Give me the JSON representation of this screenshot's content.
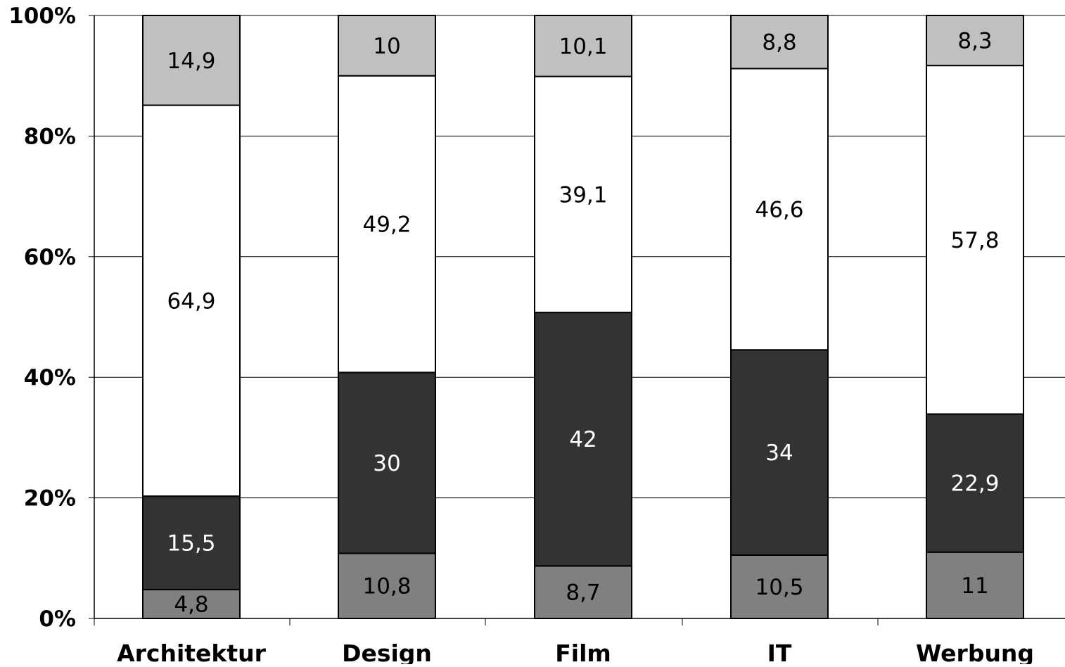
{
  "chart_data": {
    "type": "bar",
    "stacked": true,
    "percent_stacked": true,
    "categories": [
      "Architektur",
      "Design",
      "Film",
      "IT",
      "Werbung"
    ],
    "series": [
      {
        "values": [
          4.8,
          10.8,
          8.7,
          10.5,
          11
        ],
        "color": "#808080",
        "label_color": "#000000"
      },
      {
        "values": [
          15.5,
          30,
          42,
          34,
          22.9
        ],
        "color": "#333333",
        "label_color": "#ffffff"
      },
      {
        "values": [
          64.9,
          49.2,
          39.1,
          46.6,
          57.8
        ],
        "color": "#ffffff",
        "label_color": "#000000"
      },
      {
        "values": [
          14.9,
          10,
          10.1,
          8.8,
          8.3
        ],
        "color": "#c0c0c0",
        "label_color": "#000000"
      }
    ],
    "data_labels": [
      [
        "4,8",
        "10,8",
        "8,7",
        "10,5",
        "11"
      ],
      [
        "15,5",
        "30",
        "42",
        "34",
        "22,9"
      ],
      [
        "64,9",
        "49,2",
        "39,1",
        "46,6",
        "57,8"
      ],
      [
        "14,9",
        "10",
        "10,1",
        "8,8",
        "8,3"
      ]
    ],
    "y_ticks": [
      "0%",
      "20%",
      "40%",
      "60%",
      "80%",
      "100%"
    ],
    "ylim": [
      0,
      100
    ],
    "grid": true,
    "legend": "none"
  }
}
